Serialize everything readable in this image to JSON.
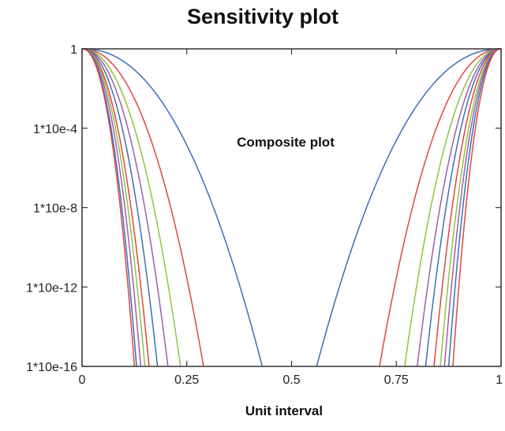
{
  "chart_data": {
    "type": "line",
    "title": "Sensitivity plot",
    "xlabel": "Unit interval",
    "ylabel": "",
    "annotation": "Composite plot",
    "scale": {
      "y": "log"
    },
    "xlim": [
      0,
      1
    ],
    "ylim": [
      1e-16,
      1
    ],
    "x_ticks": [
      {
        "value": 0,
        "label": "0"
      },
      {
        "value": 0.25,
        "label": "0.25"
      },
      {
        "value": 0.5,
        "label": "0.5"
      },
      {
        "value": 0.75,
        "label": "0.75"
      },
      {
        "value": 1,
        "label": "1"
      }
    ],
    "y_ticks": [
      {
        "value": 1,
        "label": "1"
      },
      {
        "value": 0.0001,
        "label": "1*10e-4"
      },
      {
        "value": 1e-08,
        "label": "1*10e-8"
      },
      {
        "value": 1e-12,
        "label": "1*10e-12"
      },
      {
        "value": 1e-16,
        "label": "1*10e-16"
      }
    ],
    "grid": false,
    "legend": "none",
    "series": [
      {
        "color": "#3a6fb8",
        "x_bottom_left": 0.43,
        "x_bottom_right": 0.56
      },
      {
        "color": "#e0473f",
        "x_bottom_left": 0.29,
        "x_bottom_right": 0.71
      },
      {
        "color": "#8cc63e",
        "x_bottom_left": 0.235,
        "x_bottom_right": 0.77
      },
      {
        "color": "#9b5fb0",
        "x_bottom_left": 0.205,
        "x_bottom_right": 0.8
      },
      {
        "color": "#3a6fb8",
        "x_bottom_left": 0.18,
        "x_bottom_right": 0.82
      },
      {
        "color": "#e0473f",
        "x_bottom_left": 0.16,
        "x_bottom_right": 0.84
      },
      {
        "color": "#8cc63e",
        "x_bottom_left": 0.15,
        "x_bottom_right": 0.855
      },
      {
        "color": "#9b5fb0",
        "x_bottom_left": 0.14,
        "x_bottom_right": 0.865
      },
      {
        "color": "#3a6fb8",
        "x_bottom_left": 0.13,
        "x_bottom_right": 0.875
      },
      {
        "color": "#e0473f",
        "x_bottom_left": 0.125,
        "x_bottom_right": 0.885
      }
    ]
  }
}
